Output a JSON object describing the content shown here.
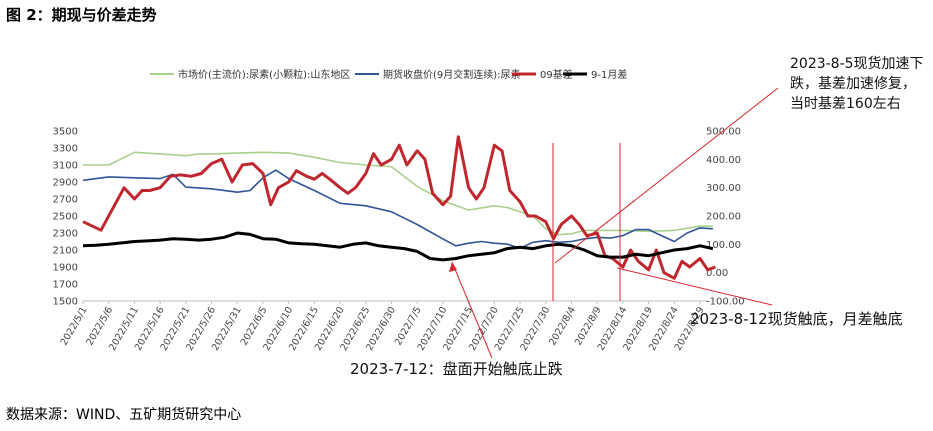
{
  "figure_title": "图 2：期现与价差走势",
  "source": "数据来源：WIND、五矿期货研究中心",
  "colors": {
    "market": "#a9d18e",
    "futures": "#2f5597",
    "basis": "#c0262d",
    "spread": "#000000",
    "annotation_line": "#d9262d"
  },
  "chart_data": {
    "type": "line",
    "legend_position": "top",
    "grid": false,
    "x_labels": [
      "2022/5/1",
      "2022/5/6",
      "2022/5/11",
      "2022/5/16",
      "2022/5/21",
      "2022/5/26",
      "2022/5/31",
      "2022/6/5",
      "2022/6/10",
      "2022/6/15",
      "2022/6/20",
      "2022/6/25",
      "2022/6/30",
      "2022/7/5",
      "2022/7/10",
      "2022/7/15",
      "2022/7/20",
      "2022/7/25",
      "2022/7/30",
      "2022/8/4",
      "2022/8/9",
      "2022/8/14",
      "2022/8/19",
      "2022/8/24",
      "2022/8/29"
    ],
    "y_left": {
      "min": 1500,
      "max": 3500,
      "ticks": [
        1500,
        1700,
        1900,
        2100,
        2300,
        2500,
        2700,
        2900,
        3100,
        3300,
        3500
      ]
    },
    "y_right": {
      "min": -100,
      "max": 500,
      "ticks": [
        "-100.00",
        "0.00",
        "100.00",
        "200.00",
        "300.00",
        "400.00",
        "500.00"
      ]
    },
    "series": [
      {
        "name": "市场价(主流价):尿素(小颗粒):山东地区",
        "axis": "left",
        "key": "market",
        "x": [
          0,
          1,
          2,
          3,
          4,
          4.5,
          5,
          6,
          7,
          8,
          9,
          10,
          11,
          12,
          13,
          14,
          15,
          16,
          16.5,
          17,
          17.5,
          18,
          18.5,
          19,
          19.5,
          20,
          21,
          22,
          23,
          24,
          24.5
        ],
        "values": [
          3100,
          3100,
          3250,
          3230,
          3210,
          3230,
          3230,
          3240,
          3250,
          3240,
          3190,
          3130,
          3100,
          3080,
          2850,
          2680,
          2570,
          2620,
          2600,
          2550,
          2500,
          2350,
          2280,
          2290,
          2330,
          2330,
          2330,
          2320,
          2330,
          2380,
          2380
        ]
      },
      {
        "name": "期货收盘价(9月交割连续):尿素",
        "axis": "left",
        "key": "futures",
        "x": [
          0,
          1,
          2,
          3,
          3.5,
          4,
          5,
          6,
          6.5,
          7,
          7.5,
          8,
          9,
          10,
          11,
          12,
          13,
          14,
          14.5,
          15,
          15.5,
          16,
          16.5,
          17,
          17.5,
          18,
          18.5,
          19,
          19.5,
          20,
          20.5,
          21,
          21.5,
          22,
          22.5,
          23,
          23.5,
          24,
          24.5
        ],
        "values": [
          2920,
          2960,
          2950,
          2940,
          2990,
          2840,
          2820,
          2780,
          2800,
          2950,
          3040,
          2940,
          2800,
          2650,
          2620,
          2550,
          2400,
          2230,
          2150,
          2180,
          2200,
          2180,
          2170,
          2120,
          2190,
          2210,
          2190,
          2200,
          2230,
          2250,
          2240,
          2270,
          2340,
          2340,
          2270,
          2200,
          2300,
          2360,
          2350
        ]
      },
      {
        "name": "09基差",
        "axis": "right",
        "key": "basis",
        "x": [
          0,
          0.7,
          1.6,
          2,
          2.3,
          2.6,
          3,
          3.4,
          3.8,
          4.2,
          4.6,
          5,
          5.4,
          5.8,
          6.2,
          6.6,
          7,
          7.3,
          7.6,
          8,
          8.3,
          8.7,
          9,
          9.3,
          9.6,
          10,
          10.3,
          10.6,
          11,
          11.3,
          11.6,
          12,
          12.3,
          12.6,
          13,
          13.3,
          13.6,
          14,
          14.3,
          14.6,
          15,
          15.3,
          15.6,
          16,
          16.3,
          16.6,
          17,
          17.3,
          17.6,
          18,
          18.3,
          18.6,
          19,
          19.3,
          19.6,
          20,
          20.3,
          20.6,
          21,
          21.3,
          21.6,
          22,
          22.3,
          22.6,
          23,
          23.3,
          23.6,
          24,
          24.3,
          24.6
        ],
        "values": [
          180,
          150,
          300,
          260,
          290,
          290,
          300,
          340,
          345,
          340,
          350,
          385,
          400,
          320,
          380,
          385,
          350,
          240,
          300,
          320,
          360,
          340,
          330,
          350,
          330,
          300,
          280,
          300,
          350,
          420,
          380,
          400,
          450,
          380,
          430,
          400,
          280,
          240,
          270,
          480,
          300,
          260,
          300,
          450,
          430,
          290,
          250,
          200,
          200,
          180,
          120,
          170,
          200,
          170,
          130,
          140,
          60,
          50,
          20,
          80,
          40,
          10,
          80,
          0,
          -20,
          40,
          20,
          50,
          10,
          20
        ]
      },
      {
        "name": "9-1月差",
        "axis": "right",
        "key": "spread",
        "x": [
          0,
          0.5,
          1,
          1.5,
          2,
          2.5,
          3,
          3.5,
          4,
          4.5,
          5,
          5.5,
          6,
          6.5,
          7,
          7.5,
          8,
          8.5,
          9,
          9.5,
          10,
          10.5,
          11,
          11.5,
          12,
          12.5,
          13,
          13.5,
          14,
          14.5,
          15,
          15.5,
          16,
          16.5,
          17,
          17.5,
          18,
          18.5,
          19,
          19.5,
          20,
          20.5,
          21,
          21.5,
          22,
          22.5,
          23,
          23.5,
          24,
          24.5
        ],
        "values": [
          95,
          97,
          100,
          105,
          110,
          112,
          115,
          120,
          118,
          115,
          118,
          125,
          140,
          135,
          120,
          118,
          105,
          102,
          100,
          95,
          90,
          100,
          105,
          95,
          90,
          85,
          75,
          50,
          45,
          50,
          60,
          65,
          70,
          85,
          90,
          85,
          95,
          100,
          95,
          80,
          60,
          55,
          55,
          65,
          60,
          70,
          80,
          85,
          95,
          85
        ]
      }
    ],
    "annotations": [
      "2023-8-5现货加速下跌，基差加速修复，当时基差160左右",
      "2023-8-12现货触底，月差触底",
      "2023-7-12：盘面开始触底止跌"
    ]
  }
}
